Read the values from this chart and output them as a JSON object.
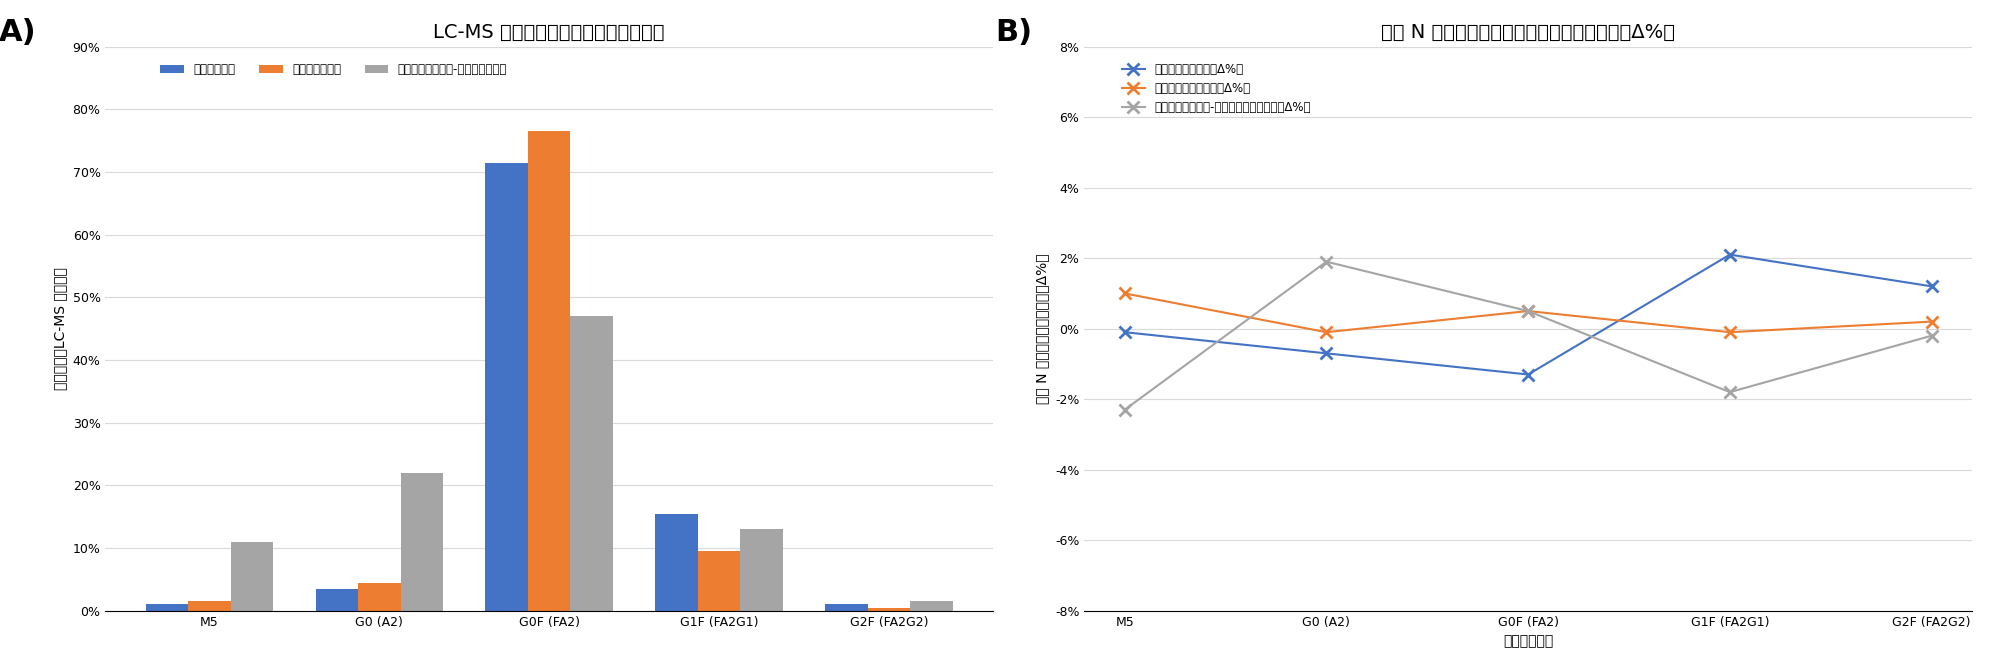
{
  "title_A": "LC-MS サブユニット分析（相対割合）",
  "title_B": "遠離 N 型糖鎖アッセイと比較した場合の差（Δ%）",
  "label_A": "A)",
  "label_B": "B)",
  "categories": [
    "M5",
    "G0 (A2)",
    "G0F (FA2)",
    "G1F (FA2G1)",
    "G2F (FA2G2)"
  ],
  "bar_innovator": [
    1.0,
    3.5,
    71.5,
    15.5,
    1.0
  ],
  "bar_biosimilar": [
    1.5,
    4.5,
    76.5,
    9.5,
    0.5
  ],
  "bar_control": [
    11.0,
    22.0,
    47.0,
    13.0,
    1.5
  ],
  "color_innovator": "#4472c4",
  "color_biosimilar": "#ed7d31",
  "color_control": "#a5a5a5",
  "legend_A": [
    "イノベーター",
    "バイオシミラー",
    "バイオシミラー（-コントロール）"
  ],
  "ylabel_A": "相対割合（LC-MS による）",
  "ylim_A_pct": [
    0,
    90
  ],
  "yticks_A_pct": [
    0,
    10,
    20,
    30,
    40,
    50,
    60,
    70,
    80,
    90
  ],
  "line_innovator": [
    -0.1,
    -0.7,
    -1.3,
    2.1,
    1.2
  ],
  "line_biosimilar": [
    1.0,
    -0.1,
    0.5,
    -0.1,
    0.2
  ],
  "line_control": [
    -2.3,
    1.9,
    0.5,
    -1.8,
    -0.2
  ],
  "legend_B": [
    "イノベーターの差（Δ%）",
    "バイオシミラーの差（Δ%）",
    "バイオシミラー（-コントロール）の差（Δ%）"
  ],
  "ylabel_B": "遠離 N 型糖鎖の結果との差（Δ%）",
  "xlabel_B": "軸のタイトル",
  "ylim_B": [
    -8,
    8
  ],
  "yticks_B": [
    -8,
    -6,
    -4,
    -2,
    0,
    2,
    4,
    6,
    8
  ],
  "background_color": "#ffffff",
  "grid_color": "#d9d9d9",
  "title_fontsize": 14,
  "label_fontsize": 10,
  "tick_fontsize": 9,
  "legend_fontsize": 8.5
}
